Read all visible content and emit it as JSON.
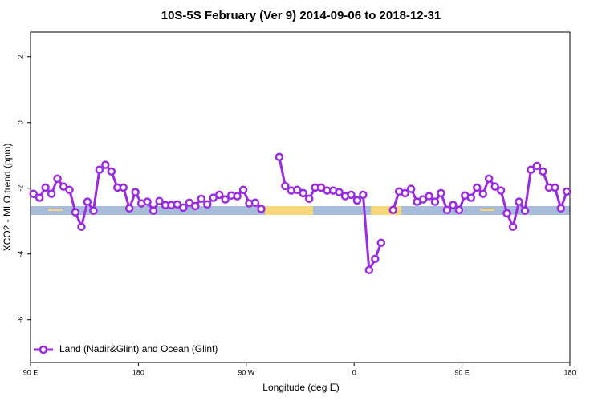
{
  "chart_data": {
    "type": "line",
    "title": "10S-5S February (Ver 9)   2014-09-06 to 2018-12-31",
    "x_label": "Longitude (deg E)",
    "y_label": "XCO2 - MLO trend (ppm)",
    "xlim": [
      90,
      540
    ],
    "ylim": [
      -7.3,
      2.75
    ],
    "xticks": [
      {
        "value": 90,
        "label": "90 E"
      },
      180,
      {
        "value": 270,
        "label": "90 W"
      },
      {
        "value": 360,
        "label": "0"
      },
      {
        "value": 450,
        "label": "90 E"
      },
      {
        "value": 540,
        "label": "180"
      }
    ],
    "yticks": [
      2,
      0,
      -2,
      -4,
      -6
    ],
    "legend_position": "bottom-left",
    "x": [
      92.5,
      97.5,
      102.5,
      107.5,
      112.5,
      117.5,
      122.5,
      127.5,
      132.5,
      137.5,
      142.5,
      147.5,
      152.5,
      157.5,
      162.5,
      167.5,
      172.5,
      177.5,
      182.5,
      187.5,
      192.5,
      197.5,
      202.5,
      207.5,
      212.5,
      217.5,
      222.5,
      227.5,
      232.5,
      237.5,
      242.5,
      247.5,
      252.5,
      257.5,
      262.5,
      267.5,
      272.5,
      277.5,
      282.5,
      287.5,
      292.5,
      297.5,
      302.5,
      307.5,
      312.5,
      317.5,
      322.5,
      327.5,
      332.5,
      337.5,
      342.5,
      347.5,
      352.5,
      357.5,
      362.5,
      367.5,
      372.5,
      377.5,
      382.5,
      387.5,
      392.5,
      397.5,
      402.5,
      407.5,
      412.5,
      417.5,
      422.5,
      427.5,
      432.5,
      437.5,
      442.5,
      447.5,
      452.5,
      457.5,
      462.5,
      467.5,
      472.5,
      477.5,
      482.5,
      487.5,
      492.5,
      497.5,
      502.5,
      507.5,
      512.5,
      517.5,
      522.5,
      527.5,
      532.5,
      537.5
    ],
    "series": [
      {
        "name": "Land (Nadir&Glint) and Ocean (Glint)",
        "color": "#9a2be2",
        "values": [
          -2.17,
          -2.29,
          -1.98,
          -2.17,
          -1.71,
          -1.95,
          -2.05,
          -2.73,
          -3.17,
          -2.41,
          -2.68,
          -1.44,
          -1.29,
          -1.49,
          -1.98,
          -1.98,
          -2.61,
          -2.12,
          -2.46,
          -2.41,
          -2.68,
          -2.39,
          -2.51,
          -2.51,
          -2.49,
          -2.59,
          -2.44,
          -2.54,
          -2.32,
          -2.49,
          -2.29,
          -2.2,
          -2.34,
          -2.22,
          -2.24,
          -2.05,
          -2.46,
          -2.44,
          -2.63,
          null,
          null,
          -1.05,
          -1.93,
          -2.07,
          -2.05,
          -2.15,
          -2.32,
          -1.98,
          -1.98,
          -2.07,
          -2.07,
          -2.12,
          -2.24,
          -2.2,
          -2.37,
          -2.2,
          -4.49,
          -4.15,
          -3.66,
          null,
          -2.66,
          -2.1,
          -2.15,
          -2.02,
          -2.41,
          -2.34,
          -2.24,
          -2.41,
          -2.15,
          -2.66,
          -2.51,
          -2.66,
          -2.22,
          -2.29,
          -1.98,
          -2.17,
          -1.71,
          -1.95,
          -2.07,
          -2.76,
          -3.17,
          -2.41,
          -2.68,
          -1.44,
          -1.32,
          -1.49,
          -1.98,
          -1.98,
          -2.61,
          -2.1
        ]
      }
    ]
  }
}
